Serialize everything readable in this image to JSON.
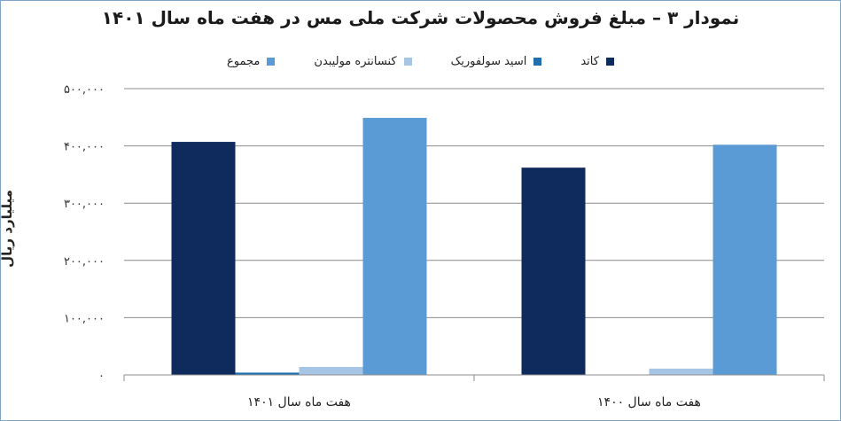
{
  "chart_data": {
    "type": "bar",
    "title": "نمودار ۳ – مبلغ فروش محصولات شرکت ملی مس در هفت ماه سال ۱۴۰۱",
    "ylabel": "میلیارد ریال",
    "xlabel": "",
    "categories": [
      "هفت ماه سال ۱۴۰۱",
      "هفت ماه سال ۱۴۰۰"
    ],
    "ylim": [
      0,
      500000
    ],
    "yticks": [
      0,
      100000,
      200000,
      300000,
      400000,
      500000
    ],
    "ytick_labels": [
      "۰",
      "۱۰۰,۰۰۰",
      "۲۰۰,۰۰۰",
      "۳۰۰,۰۰۰",
      "۴۰۰,۰۰۰",
      "۵۰۰,۰۰۰"
    ],
    "grid": true,
    "legend_position": "top",
    "series": [
      {
        "name": "کاتد",
        "color": "#0f2a5c",
        "values": [
          407000,
          362000
        ]
      },
      {
        "name": "اسید سولفوریک",
        "color": "#1f6fb0",
        "values": [
          4000,
          0
        ]
      },
      {
        "name": "کنسانتره مولیبدن",
        "color": "#a7c6e6",
        "values": [
          14000,
          11000
        ]
      },
      {
        "name": "مجموع",
        "color": "#5b9bd5",
        "values": [
          449000,
          402000
        ]
      }
    ]
  }
}
